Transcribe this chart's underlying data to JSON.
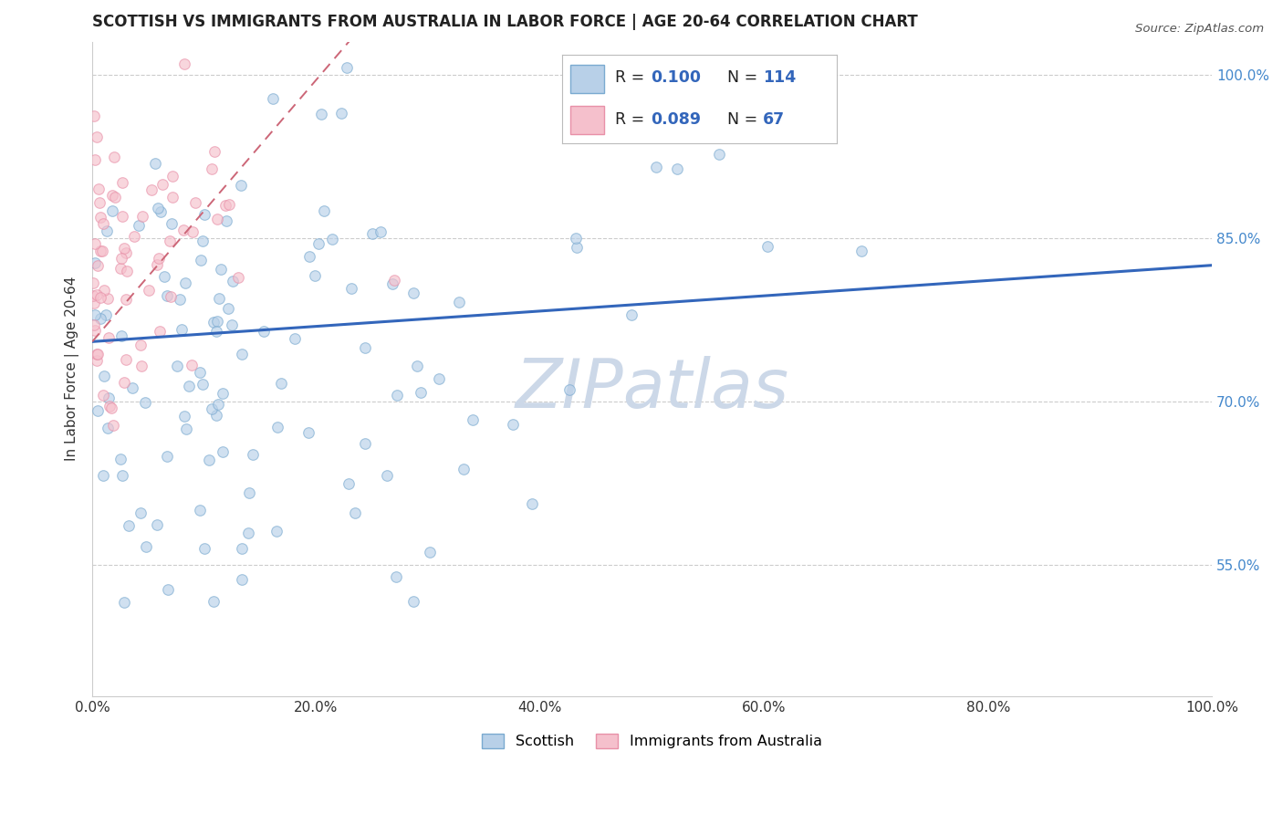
{
  "title": "SCOTTISH VS IMMIGRANTS FROM AUSTRALIA IN LABOR FORCE | AGE 20-64 CORRELATION CHART",
  "source_text": "Source: ZipAtlas.com",
  "ylabel": "In Labor Force | Age 20-64",
  "xlim": [
    0.0,
    1.0
  ],
  "ylim": [
    0.43,
    1.03
  ],
  "xticks": [
    0.0,
    0.2,
    0.4,
    0.6,
    0.8,
    1.0
  ],
  "xticklabels": [
    "0.0%",
    "20.0%",
    "40.0%",
    "60.0%",
    "80.0%",
    "100.0%"
  ],
  "yticks": [
    0.55,
    0.7,
    0.85,
    1.0
  ],
  "yticklabels": [
    "55.0%",
    "70.0%",
    "85.0%",
    "100.0%"
  ],
  "watermark": "ZIPatlas",
  "R_scottish": 0.1,
  "N_scottish": 114,
  "R_australia": 0.089,
  "N_australia": 67,
  "scottish_color": "#b8d0e8",
  "scottish_edge_color": "#7aaad0",
  "australia_color": "#f5c0cc",
  "australia_edge_color": "#e890a8",
  "scottish_line_color": "#3366bb",
  "australia_line_color": "#cc6677",
  "dot_size": 70,
  "dot_alpha": 0.65,
  "grid_color": "#cccccc",
  "background_color": "#ffffff",
  "watermark_color": "#ccd8e8",
  "title_fontsize": 12,
  "axis_label_fontsize": 11,
  "tick_fontsize": 11,
  "ytick_color": "#4488cc",
  "xtick_color": "#333333"
}
